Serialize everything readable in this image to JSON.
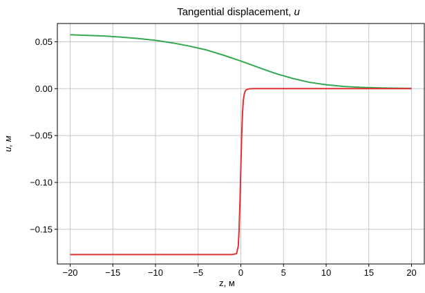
{
  "chart_data": {
    "type": "line",
    "title": "Tangential displacement,",
    "title_symbol": "u",
    "xlabel": "z, м",
    "ylabel": "u, м",
    "xlim": [
      -21.5,
      21.5
    ],
    "ylim": [
      -0.187,
      0.0695
    ],
    "xticks": [
      -20,
      -15,
      -10,
      -5,
      0,
      5,
      10,
      15,
      20
    ],
    "xtick_labels": [
      "−20",
      "−15",
      "−10",
      "−5",
      "0",
      "5",
      "10",
      "15",
      "20"
    ],
    "yticks": [
      0.05,
      0.0,
      -0.05,
      -0.1,
      -0.15
    ],
    "ytick_labels": [
      "0.05",
      "0.00",
      "−0.05",
      "−0.10",
      "−0.15"
    ],
    "grid": true,
    "series": [
      {
        "color": "#33a84e",
        "x": [
          -20,
          -18,
          -16,
          -14,
          -12,
          -10,
          -8,
          -6,
          -4,
          -2,
          0,
          2,
          4,
          6,
          8,
          10,
          12,
          14,
          16,
          18,
          20
        ],
        "y": [
          0.0575,
          0.0568,
          0.0561,
          0.0549,
          0.0535,
          0.0515,
          0.0488,
          0.0453,
          0.0412,
          0.0356,
          0.0295,
          0.0228,
          0.0164,
          0.0111,
          0.0068,
          0.0042,
          0.0024,
          0.0014,
          0.0009,
          0.0005,
          0.0003
        ]
      },
      {
        "color": "#e03030",
        "x": [
          -20,
          -5,
          -1,
          -0.5,
          -0.3,
          -0.2,
          -0.1,
          0,
          0.1,
          0.2,
          0.3,
          0.4,
          0.5,
          0.6,
          0.8,
          1.0,
          1.5,
          5,
          10,
          20
        ],
        "y": [
          -0.177,
          -0.177,
          -0.177,
          -0.176,
          -0.168,
          -0.15,
          -0.12,
          -0.085,
          -0.05,
          -0.025,
          -0.012,
          -0.006,
          -0.003,
          -0.0015,
          -0.0005,
          -0.0002,
          0.0,
          0.0,
          0.0,
          0.0
        ]
      }
    ]
  }
}
